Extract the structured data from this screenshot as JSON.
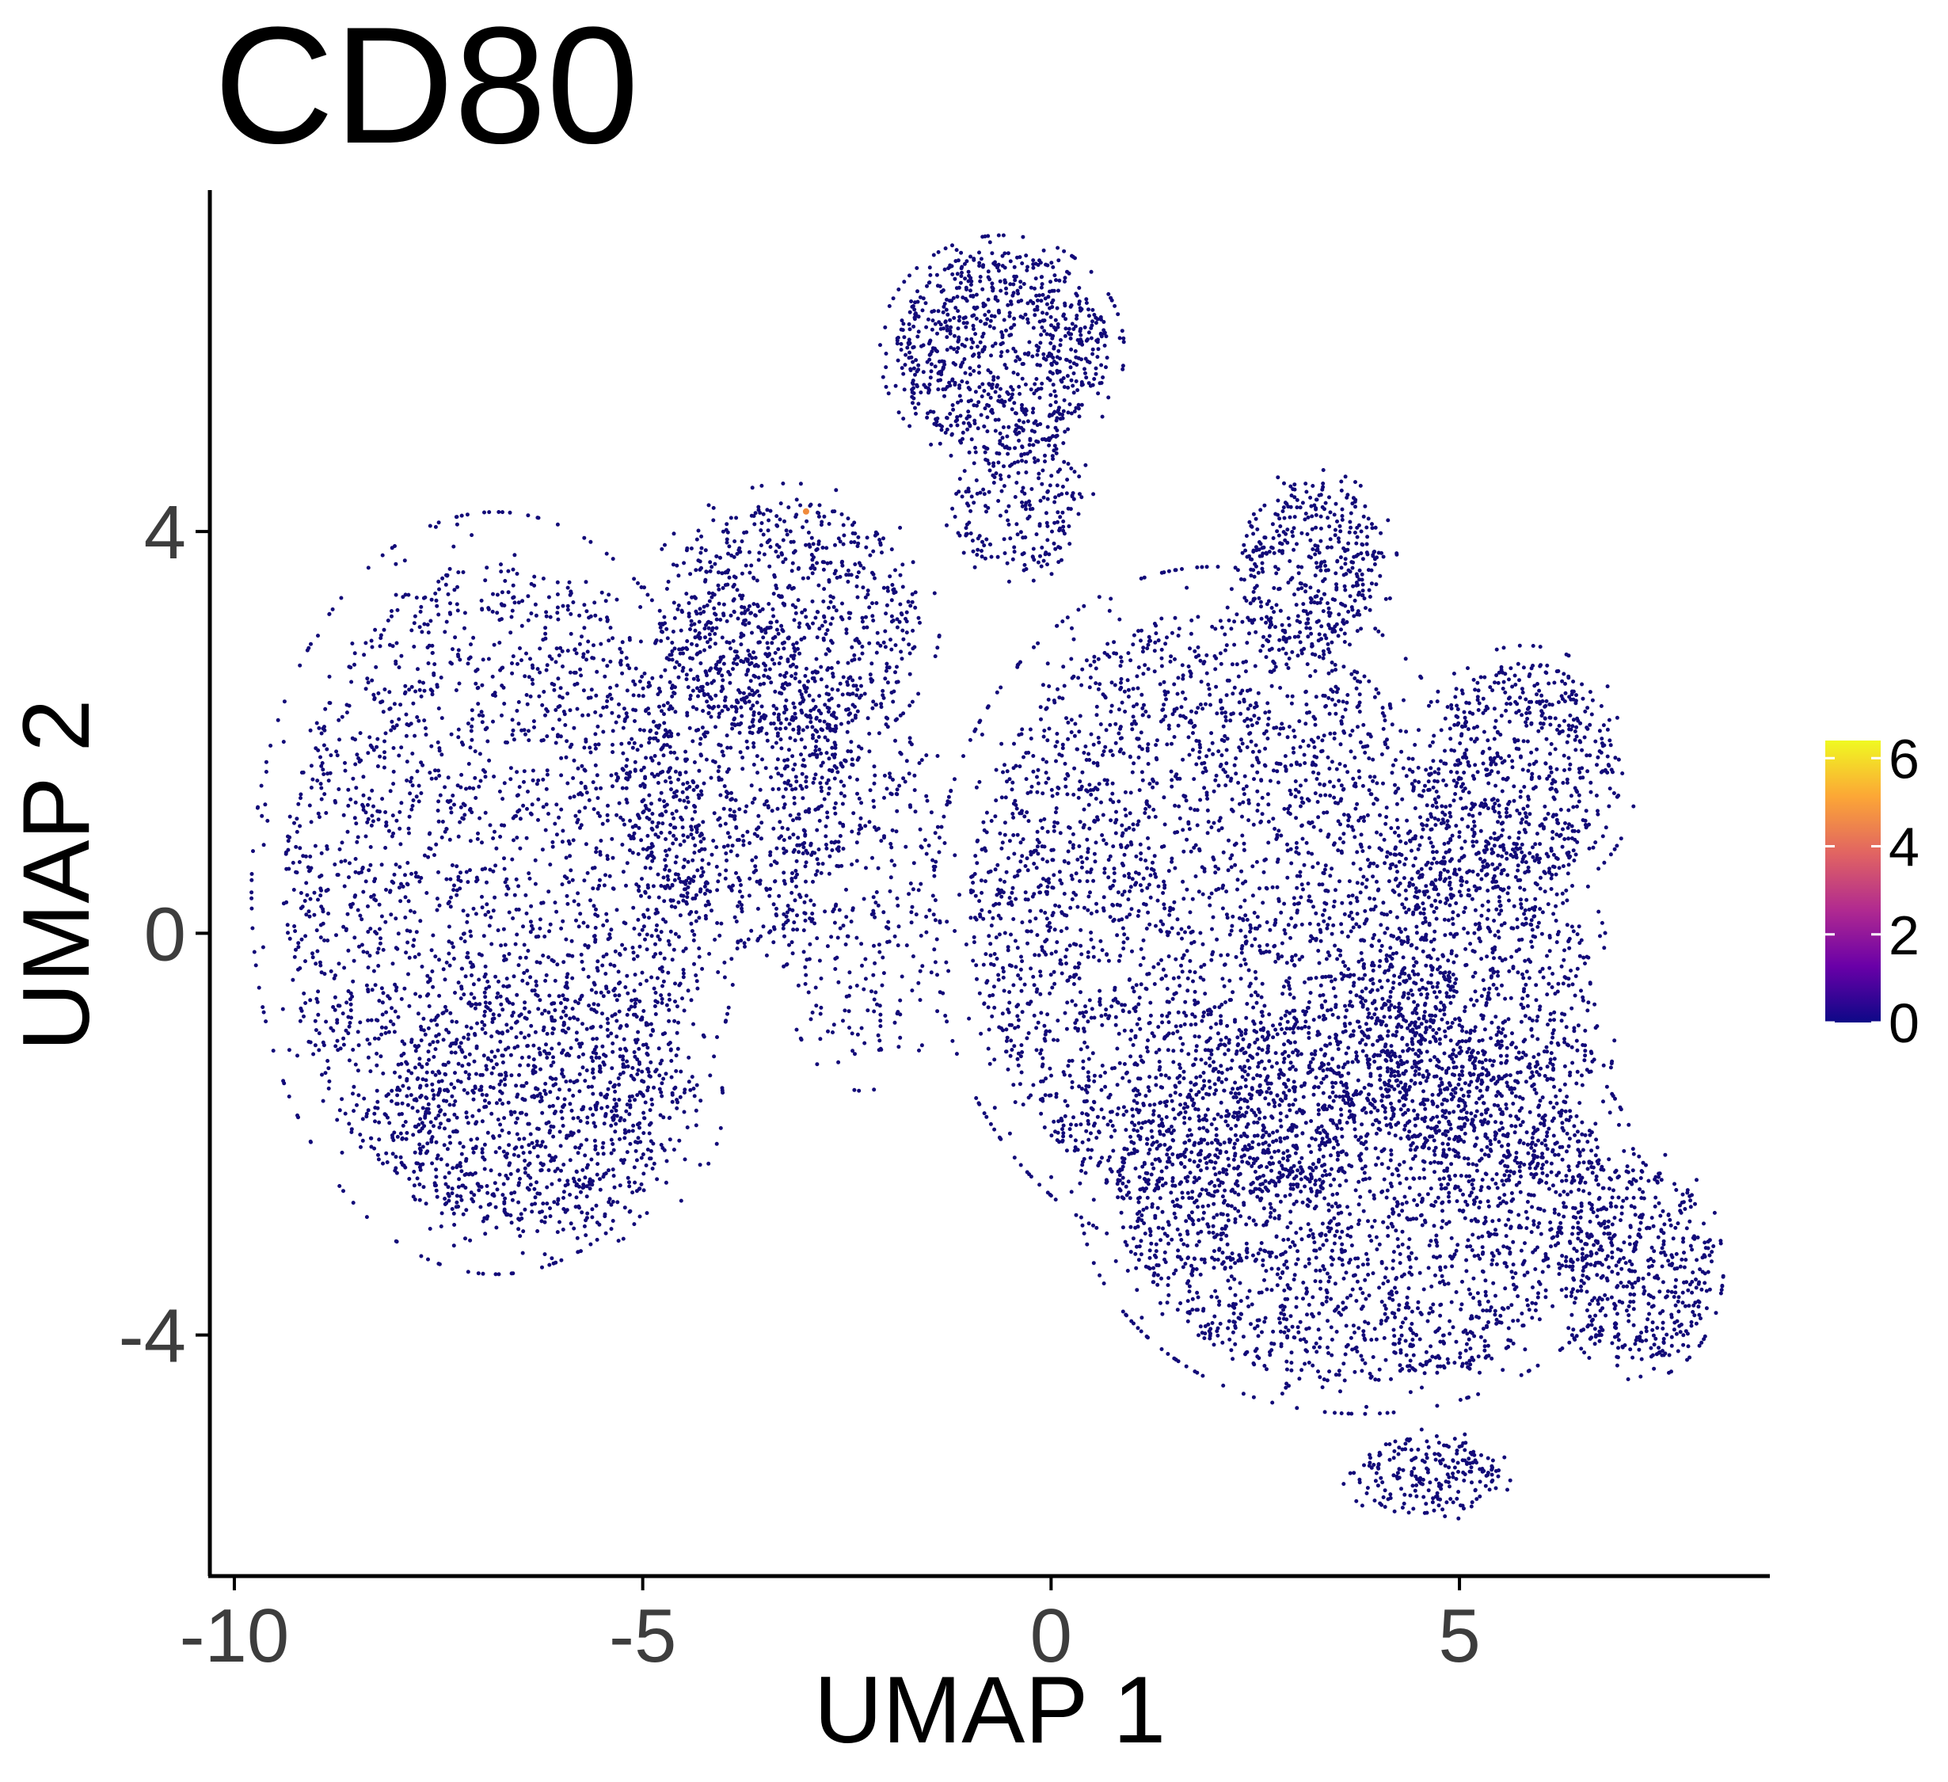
{
  "chart_data": {
    "type": "scatter",
    "title": "CD80",
    "xlabel": "UMAP 1",
    "ylabel": "UMAP 2",
    "xlim": [
      -10.3,
      8.8
    ],
    "ylim": [
      -6.4,
      7.4
    ],
    "x_ticks": [
      -10,
      -5,
      0,
      5
    ],
    "x_tick_labels": [
      "-10",
      "-5",
      "0",
      "5"
    ],
    "y_ticks": [
      -4,
      0,
      4
    ],
    "y_tick_labels": [
      "-4",
      "0",
      "4"
    ],
    "grid": false,
    "legend": {
      "placement": "right",
      "type": "colorbar",
      "ticks": [
        0,
        2,
        4,
        6
      ],
      "tick_labels": [
        "0",
        "2",
        "4",
        "6"
      ],
      "range": [
        0,
        6.4
      ],
      "colors": [
        "#0d0887",
        "#6a00a8",
        "#b12a90",
        "#e16462",
        "#fca636",
        "#f0f921"
      ]
    },
    "point_color": "#120a78",
    "point_value": 0,
    "highlight_points": [
      {
        "x": -3.0,
        "y": 4.2,
        "value": 4.5,
        "color": "#f08a3c"
      }
    ],
    "clusters": [
      {
        "name": "left-blob",
        "cx": -6.8,
        "cy": 0.4,
        "rx": 2.6,
        "ry": 3.3,
        "n": 2400
      },
      {
        "name": "left-lower",
        "cx": -6.2,
        "cy": -1.7,
        "rx": 1.9,
        "ry": 1.3,
        "n": 700
      },
      {
        "name": "left-top-mid",
        "cx": -3.2,
        "cy": 3.1,
        "rx": 1.6,
        "ry": 1.2,
        "n": 800
      },
      {
        "name": "left-middle",
        "cx": -3.8,
        "cy": 1.5,
        "rx": 1.3,
        "ry": 1.7,
        "n": 700
      },
      {
        "name": "center-bridge-sparse",
        "cx": -2.3,
        "cy": 0.5,
        "rx": 1.0,
        "ry": 1.8,
        "n": 350
      },
      {
        "name": "top-island",
        "cx": -0.6,
        "cy": 5.8,
        "rx": 1.3,
        "ry": 1.0,
        "n": 900
      },
      {
        "name": "neck",
        "cx": -0.4,
        "cy": 4.3,
        "rx": 0.8,
        "ry": 0.7,
        "n": 220
      },
      {
        "name": "right-main",
        "cx": 2.0,
        "cy": 0.2,
        "rx": 3.0,
        "ry": 3.0,
        "n": 3600
      },
      {
        "name": "right-lower",
        "cx": 3.8,
        "cy": -2.6,
        "rx": 3.0,
        "ry": 1.9,
        "n": 2400
      },
      {
        "name": "right-peak",
        "cx": 3.2,
        "cy": 3.7,
        "rx": 0.9,
        "ry": 0.8,
        "n": 400
      },
      {
        "name": "right-arm",
        "cx": 5.8,
        "cy": 1.6,
        "rx": 1.2,
        "ry": 1.1,
        "n": 650
      },
      {
        "name": "far-right-lower",
        "cx": 7.2,
        "cy": -3.3,
        "rx": 0.9,
        "ry": 1.0,
        "n": 500
      },
      {
        "name": "bottom-tail",
        "cx": 4.6,
        "cy": -5.4,
        "rx": 0.9,
        "ry": 0.4,
        "n": 220
      },
      {
        "name": "right-mid-band",
        "cx": 5.3,
        "cy": -0.8,
        "rx": 1.4,
        "ry": 1.8,
        "n": 900
      }
    ]
  }
}
